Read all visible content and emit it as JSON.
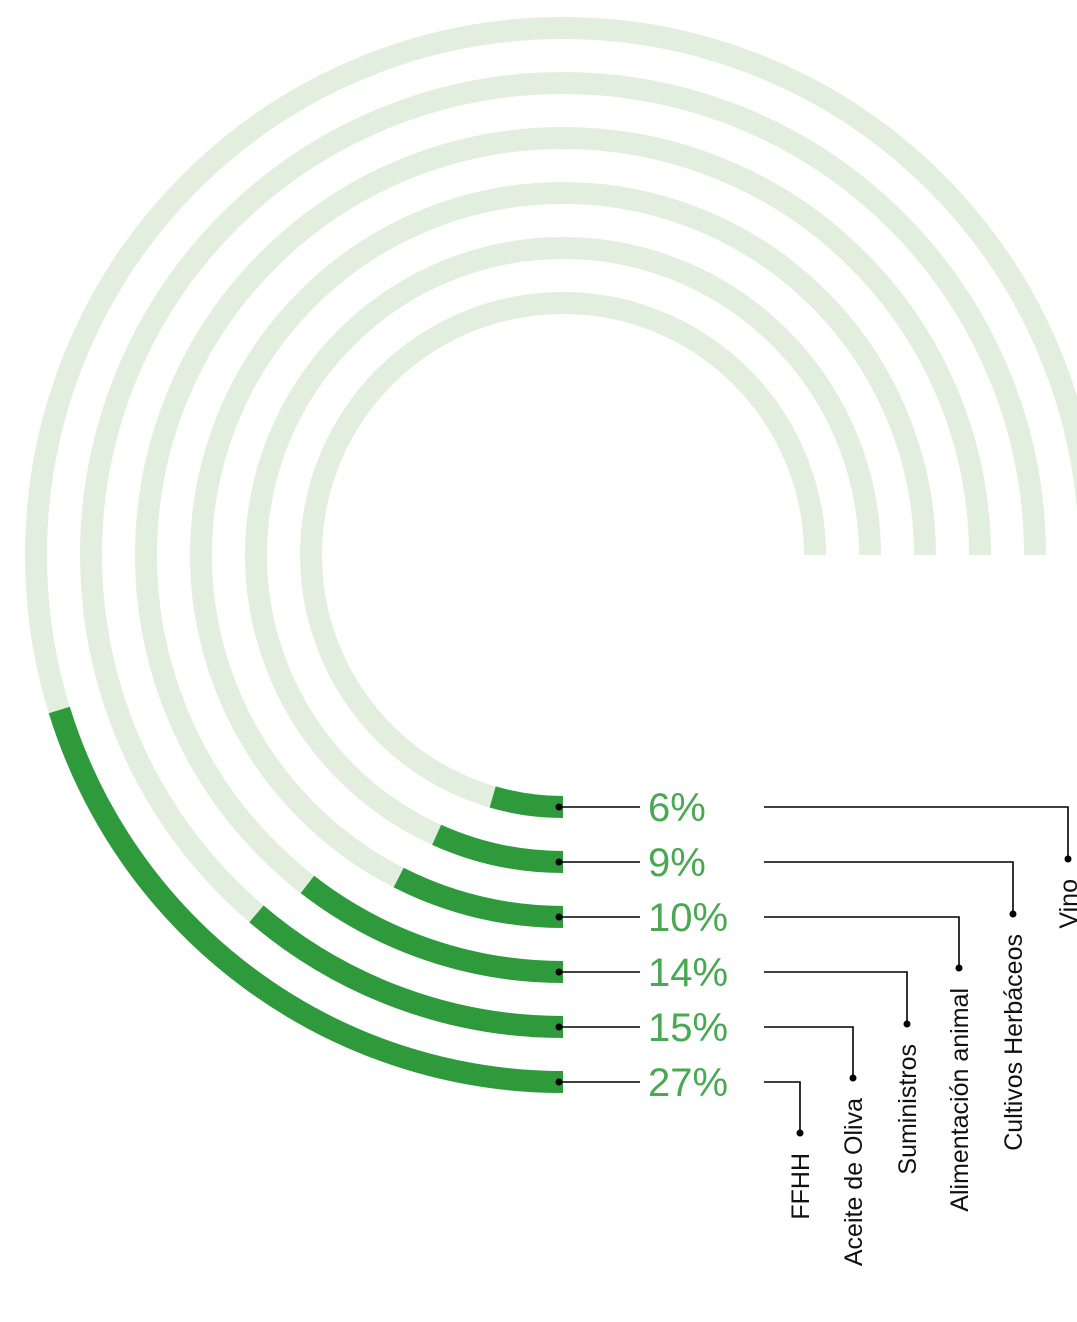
{
  "chart_data": {
    "type": "radial-bar",
    "unit": "%",
    "categories": [
      "Vino",
      "Cultivos Herbáceos",
      "Alimentación animal",
      "Suministros",
      "Aceite de Oliva",
      "FFHH"
    ],
    "values": [
      6,
      9,
      10,
      14,
      15,
      27
    ],
    "value_labels": [
      "6%",
      "9%",
      "10%",
      "14%",
      "15%",
      "27%"
    ],
    "max": 100,
    "colors": {
      "bar": "#2e9a3c",
      "track": "#e3efde",
      "label": "#49a852",
      "text": "#111111",
      "leader": "#000000"
    }
  }
}
